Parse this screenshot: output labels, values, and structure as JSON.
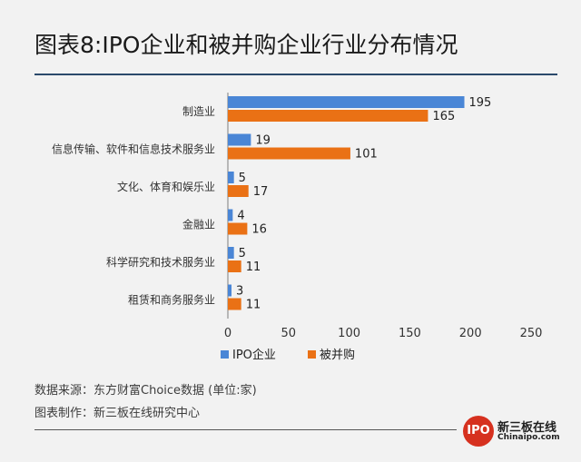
{
  "title": "图表8:IPO企业和被并购企业行业分布情况",
  "source_line": "数据来源：东方财富Choice数据 (单位:家)",
  "credit_line": "图表制作：新三板在线研究中心",
  "logo": {
    "mark": "IPO",
    "name": "新三板在线",
    "url": "Chinaipo.com"
  },
  "colors": {
    "ipo": "#4a86d6",
    "ma": "#ea7115",
    "axis": "#7f7f7f",
    "title_rule": "#2b4a6b"
  },
  "chart_data": {
    "type": "bar",
    "orientation": "horizontal",
    "categories": [
      "制造业",
      "信息传输、软件和信息技术服务业",
      "文化、体育和娱乐业",
      "金融业",
      "科学研究和技术服务业",
      "租赁和商务服务业"
    ],
    "series": [
      {
        "name": "IPO企业",
        "values": [
          195,
          19,
          5,
          4,
          5,
          3
        ]
      },
      {
        "name": "被并购",
        "values": [
          165,
          101,
          17,
          16,
          11,
          11
        ]
      }
    ],
    "xlim": [
      0,
      250
    ],
    "ticks": [
      "0",
      "50",
      "100",
      "150",
      "200",
      "250"
    ],
    "data_labels": true,
    "legend": "bottom-center",
    "grid": false
  }
}
